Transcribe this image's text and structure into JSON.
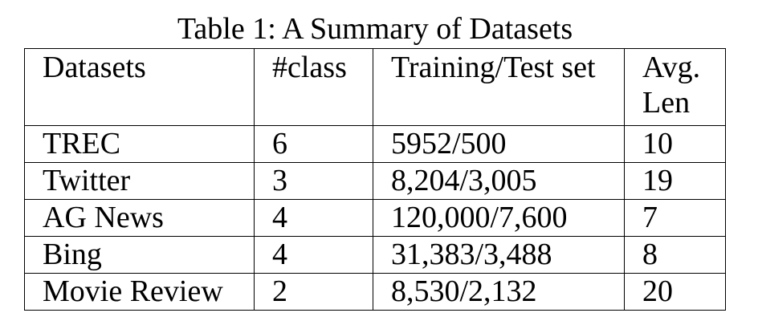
{
  "caption": "Table 1: A Summary of Datasets",
  "table": {
    "headers": [
      "Datasets",
      "#class",
      "Training/Test set",
      "Avg. Len"
    ],
    "rows": [
      [
        "TREC",
        "6",
        "5952/500",
        "10"
      ],
      [
        "Twitter",
        "3",
        "8,204/3,005",
        "19"
      ],
      [
        "AG News",
        "4",
        "120,000/7,600",
        "7"
      ],
      [
        "Bing",
        "4",
        "31,383/3,488",
        "8"
      ],
      [
        "Movie Review",
        "2",
        "8,530/2,132",
        "20"
      ]
    ]
  }
}
